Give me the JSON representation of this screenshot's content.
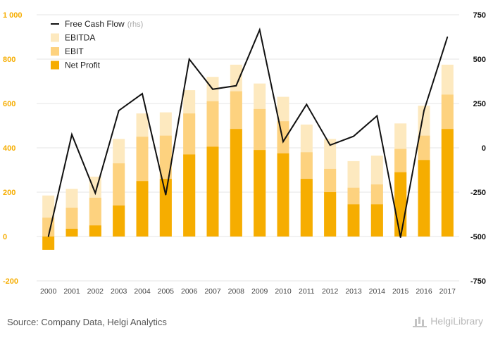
{
  "footer": {
    "source": "Source: Company Data, Helgi Analytics",
    "logo_text": "HelgiLibrary"
  },
  "chart_data": {
    "type": "bar",
    "categories": [
      "2000",
      "2001",
      "2002",
      "2003",
      "2004",
      "2005",
      "2006",
      "2007",
      "2008",
      "2009",
      "2010",
      "2011",
      "2012",
      "2013",
      "2014",
      "2015",
      "2016",
      "2017"
    ],
    "series": [
      {
        "name": "EBITDA",
        "kind": "bar",
        "axis": "left",
        "color": "#fde9bf",
        "values": [
          185,
          215,
          270,
          440,
          555,
          560,
          660,
          720,
          775,
          690,
          630,
          505,
          440,
          340,
          365,
          510,
          590,
          775
        ]
      },
      {
        "name": "EBIT",
        "kind": "bar",
        "axis": "left",
        "color": "#fdd27f",
        "values": [
          85,
          130,
          175,
          330,
          450,
          455,
          555,
          610,
          655,
          575,
          520,
          380,
          305,
          220,
          235,
          395,
          455,
          640
        ]
      },
      {
        "name": "Net Profit",
        "kind": "bar",
        "axis": "left",
        "color": "#f6ad00",
        "values": [
          -60,
          35,
          50,
          140,
          250,
          260,
          370,
          405,
          485,
          390,
          375,
          260,
          200,
          145,
          145,
          290,
          345,
          485
        ]
      },
      {
        "name": "Free Cash Flow",
        "legend_suffix": "(rhs)",
        "kind": "line",
        "axis": "right",
        "color": "#111111",
        "values": [
          -500,
          75,
          -255,
          210,
          305,
          -265,
          500,
          330,
          350,
          665,
          35,
          245,
          15,
          65,
          180,
          -505,
          210,
          625
        ]
      }
    ],
    "left_axis": {
      "min": -200,
      "max": 1000,
      "ticks": [
        "-200",
        "0",
        "200",
        "400",
        "600",
        "800",
        "1 000"
      ],
      "tick_values": [
        -200,
        0,
        200,
        400,
        600,
        800,
        1000
      ],
      "color": "#f6ad00"
    },
    "right_axis": {
      "min": -750,
      "max": 750,
      "ticks": [
        "-750",
        "-500",
        "-250",
        "0",
        "250",
        "500",
        "750"
      ],
      "tick_values": [
        -750,
        -500,
        -250,
        0,
        250,
        500,
        750
      ],
      "color": "#111111"
    },
    "grid": true,
    "legend_position": "top-left",
    "title": "",
    "xlabel": "",
    "ylabel": ""
  }
}
